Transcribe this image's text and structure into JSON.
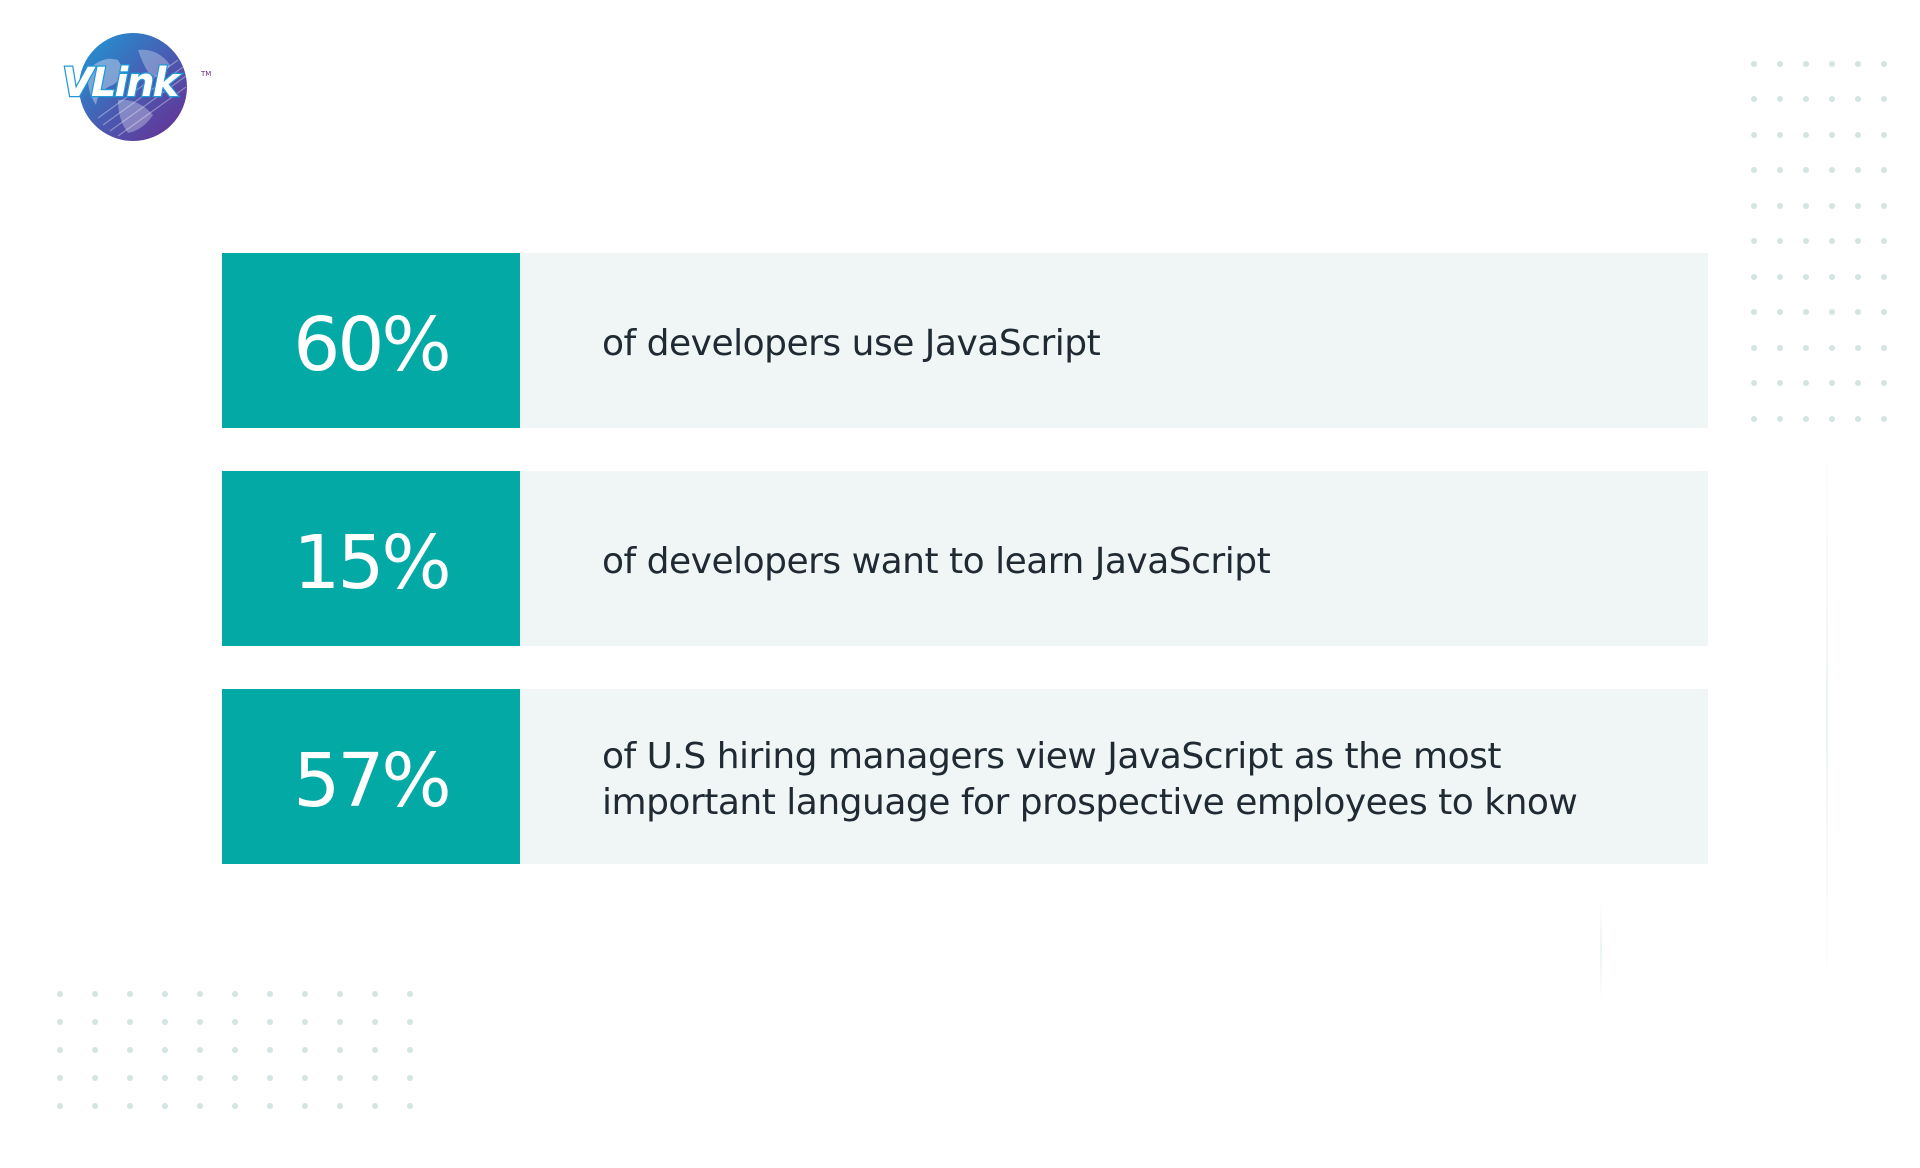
{
  "logo": {
    "text": "VLink",
    "trademark": "TM"
  },
  "stats": [
    {
      "value": "60%",
      "text": "of developers use JavaScript"
    },
    {
      "value": "15%",
      "text": "of developers want to learn JavaScript"
    },
    {
      "value": "57%",
      "text": "of U.S hiring managers view JavaScript as the most\nimportant language for prospective employees to know"
    }
  ],
  "colors": {
    "accent": "#03a9a4",
    "row_background": "#f0f6f6",
    "text": "#1f2a33",
    "dots": "#d3e4e2",
    "logo_purple": "#6a2c91",
    "logo_blue": "#1e9ad6"
  }
}
